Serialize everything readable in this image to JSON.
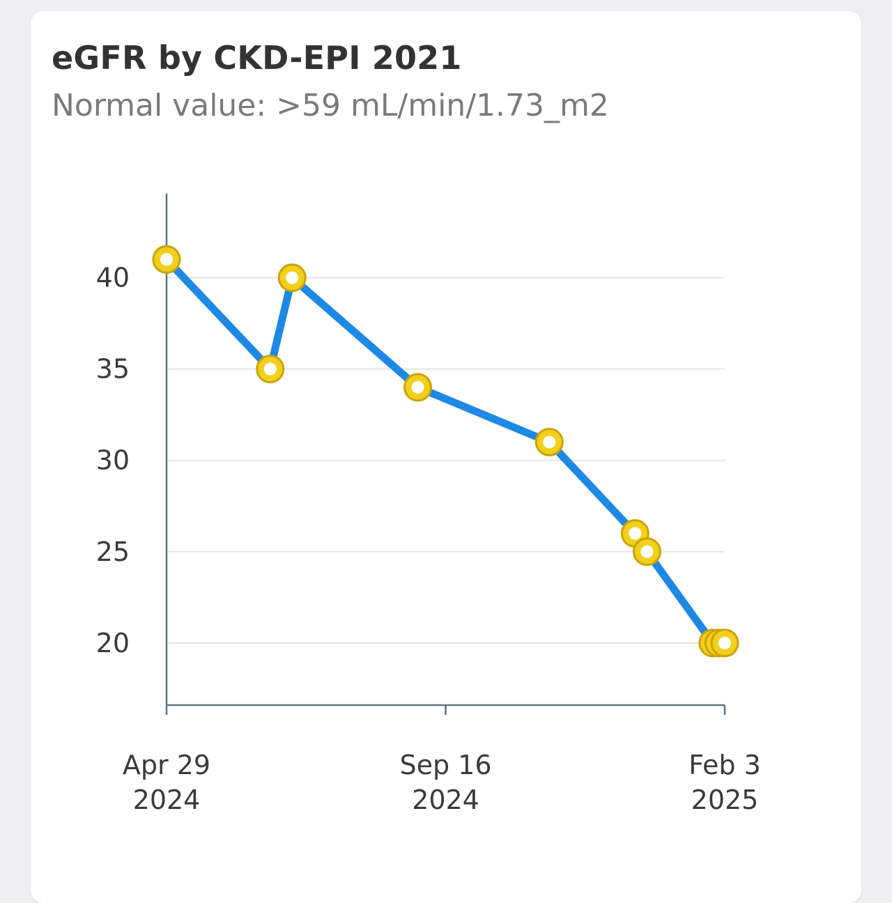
{
  "card": {
    "title": "eGFR by CKD-EPI 2021",
    "subtitle": "Normal value: >59 mL/min/1.73_m2"
  },
  "chart_data": {
    "type": "line",
    "title": "eGFR by CKD-EPI 2021",
    "subtitle": "Normal value: >59 mL/min/1.73_m2",
    "xlabel": "",
    "ylabel": "",
    "xlim": [
      "2024-04-29",
      "2025-02-03"
    ],
    "ylim": [
      16.6,
      44.6
    ],
    "y_ticks": [
      20,
      25,
      30,
      35,
      40
    ],
    "x_ticks": [
      {
        "date": "2024-04-29",
        "lines": [
          "Apr 29",
          "2024"
        ]
      },
      {
        "date": "2024-09-16",
        "lines": [
          "Sep 16",
          "2024"
        ]
      },
      {
        "date": "2025-02-03",
        "lines": [
          "Feb 3",
          "2025"
        ]
      }
    ],
    "grid": true,
    "series": [
      {
        "points": [
          {
            "x": "2024-04-29",
            "y": 41
          },
          {
            "x": "2024-06-20",
            "y": 35
          },
          {
            "x": "2024-07-01",
            "y": 40
          },
          {
            "x": "2024-09-02",
            "y": 34
          },
          {
            "x": "2024-11-07",
            "y": 31
          },
          {
            "x": "2024-12-20",
            "y": 26
          },
          {
            "x": "2024-12-26",
            "y": 25
          },
          {
            "x": "2025-01-28",
            "y": 20
          },
          {
            "x": "2025-01-31",
            "y": 20
          },
          {
            "x": "2025-02-03",
            "y": 20
          }
        ]
      }
    ],
    "colors": {
      "line": "#1e88e5",
      "marker_fill": "#f2cf1d",
      "marker_stroke": "#c9a400",
      "marker_center": "#ffffff",
      "axis": "#5f7380",
      "grid": "#e3e3e3"
    }
  }
}
